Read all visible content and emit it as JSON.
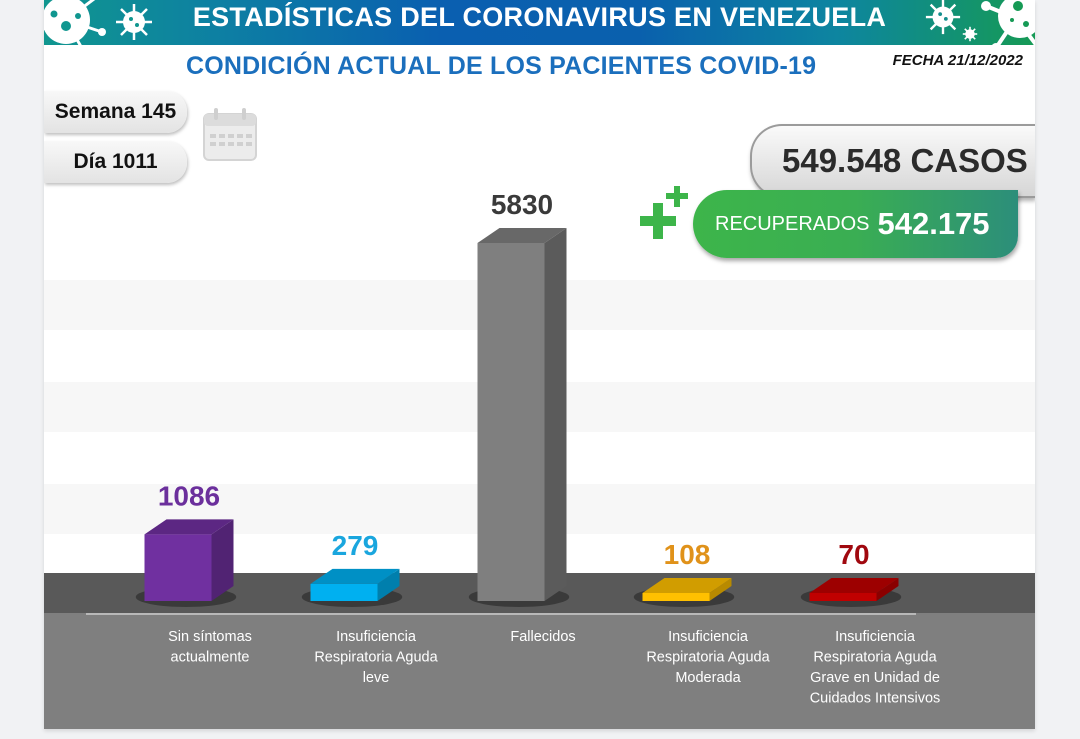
{
  "header": {
    "title": "ESTADÍSTICAS DEL CORONAVIRUS EN VENEZUELA",
    "subtitle": "CONDICIÓN ACTUAL DE LOS PACIENTES COVID-19",
    "fecha": "FECHA 21/12/2022"
  },
  "badges": {
    "semana": "Semana 145",
    "dia": "Día 1011",
    "calendar_icon": "calendar-icon"
  },
  "totals": {
    "casos": "549.548 CASOS",
    "recuperados_label": "RECUPERADOS",
    "recuperados_value": "542.175",
    "plus_icon": "medical-plus-icon"
  },
  "colors": {
    "banner_start": "#10968f",
    "banner_mid": "#0a5fb0",
    "banner_end": "#169a55",
    "subtitle": "#1b6fbd",
    "recuperados_green": "#3db54a"
  },
  "chart_data": {
    "type": "bar",
    "title": "CONDICIÓN ACTUAL DE LOS PACIENTES COVID-19",
    "xlabel": "",
    "ylabel": "",
    "ylim": [
      0,
      5830
    ],
    "grid": false,
    "legend": "none",
    "categories": [
      "Sin síntomas actualmente",
      "Insuficiencia Respiratoria Aguda leve",
      "Fallecidos",
      "Insuficiencia Respiratoria Aguda Moderada",
      "Insuficiencia Respiratoria Aguda Grave en Unidad de Cuidados Intensivos"
    ],
    "category_lines": [
      [
        "Sin síntomas",
        "actualmente"
      ],
      [
        "Insuficiencia",
        "Respiratoria Aguda",
        "leve"
      ],
      [
        "Fallecidos"
      ],
      [
        "Insuficiencia",
        "Respiratoria Aguda",
        "Moderada"
      ],
      [
        "Insuficiencia",
        "Respiratoria Aguda",
        "Grave en Unidad de",
        "Cuidados Intensivos"
      ]
    ],
    "values": [
      1086,
      279,
      5830,
      108,
      70
    ],
    "data_labels": [
      "1086",
      "279",
      "5830",
      "108",
      "70"
    ],
    "bar_colors": [
      "#7030a0",
      "#00b0f0",
      "#7f7f7f",
      "#ffc000",
      "#c00000"
    ],
    "label_colors": [
      "#6b2f9c",
      "#1aa6de",
      "#3a3a3a",
      "#e0921a",
      "#a0080f"
    ]
  }
}
